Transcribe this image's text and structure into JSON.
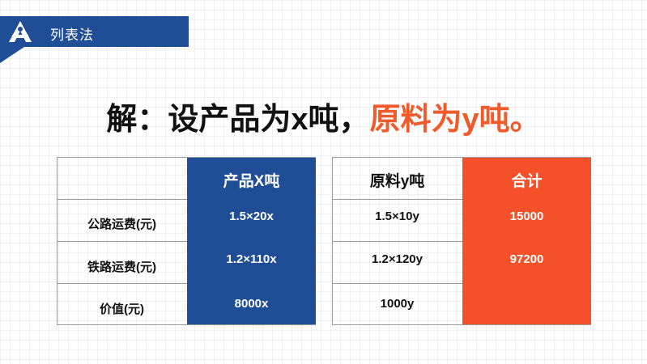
{
  "header": {
    "title": "列表法",
    "logo_icon": "triangle-logo-icon"
  },
  "headline": {
    "prefix": "解：设产品为x吨，",
    "highlight": "原料为y吨。",
    "highlight_color": "#f15a2b"
  },
  "colors": {
    "blue": "#1f4e96",
    "red": "#f4502a"
  },
  "left_table": {
    "header": [
      "",
      "产品X吨"
    ],
    "rows": [
      [
        "公路运费(元)",
        "1.5×20x"
      ],
      [
        "铁路运费(元)",
        "1.2×110x"
      ],
      [
        "价值(元)",
        "8000x"
      ]
    ]
  },
  "right_table": {
    "header": [
      "原料y吨",
      "合计"
    ],
    "rows": [
      [
        "1.5×10y",
        "15000"
      ],
      [
        "1.2×120y",
        "97200"
      ],
      [
        "1000y",
        ""
      ]
    ]
  }
}
